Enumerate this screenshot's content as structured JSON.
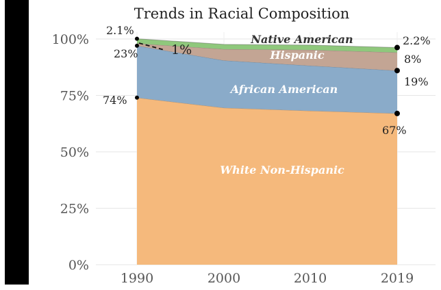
{
  "chart_data": {
    "type": "area",
    "title": "Trends in Racial Composition",
    "x": [
      "1990",
      "2000",
      "2010",
      "2019"
    ],
    "y_ticks": [
      "0%",
      "25%",
      "50%",
      "75%",
      "100%"
    ],
    "ylim": [
      0,
      100
    ],
    "grid": true,
    "stacked": true,
    "series": [
      {
        "name": "White Non-Hispanic",
        "values": [
          74,
          69.5,
          68.2,
          67
        ],
        "color": "#f5b97c"
      },
      {
        "name": "African American",
        "values": [
          23,
          21,
          20,
          19
        ],
        "color": "#8aabc9"
      },
      {
        "name": "Hispanic",
        "values": [
          1,
          5,
          7,
          8
        ],
        "color": "#c3a594"
      },
      {
        "name": "Native American",
        "values": [
          2.1,
          2.1,
          2.1,
          2.2
        ],
        "color": "#8fc87c"
      }
    ],
    "annotations": {
      "start_native": "2.1%",
      "start_african": "23%",
      "start_hispanic": "1%",
      "start_white": "74%",
      "end_native": "2.2%",
      "end_hispanic": "8%",
      "end_african": "19%",
      "end_white": "67%"
    }
  }
}
